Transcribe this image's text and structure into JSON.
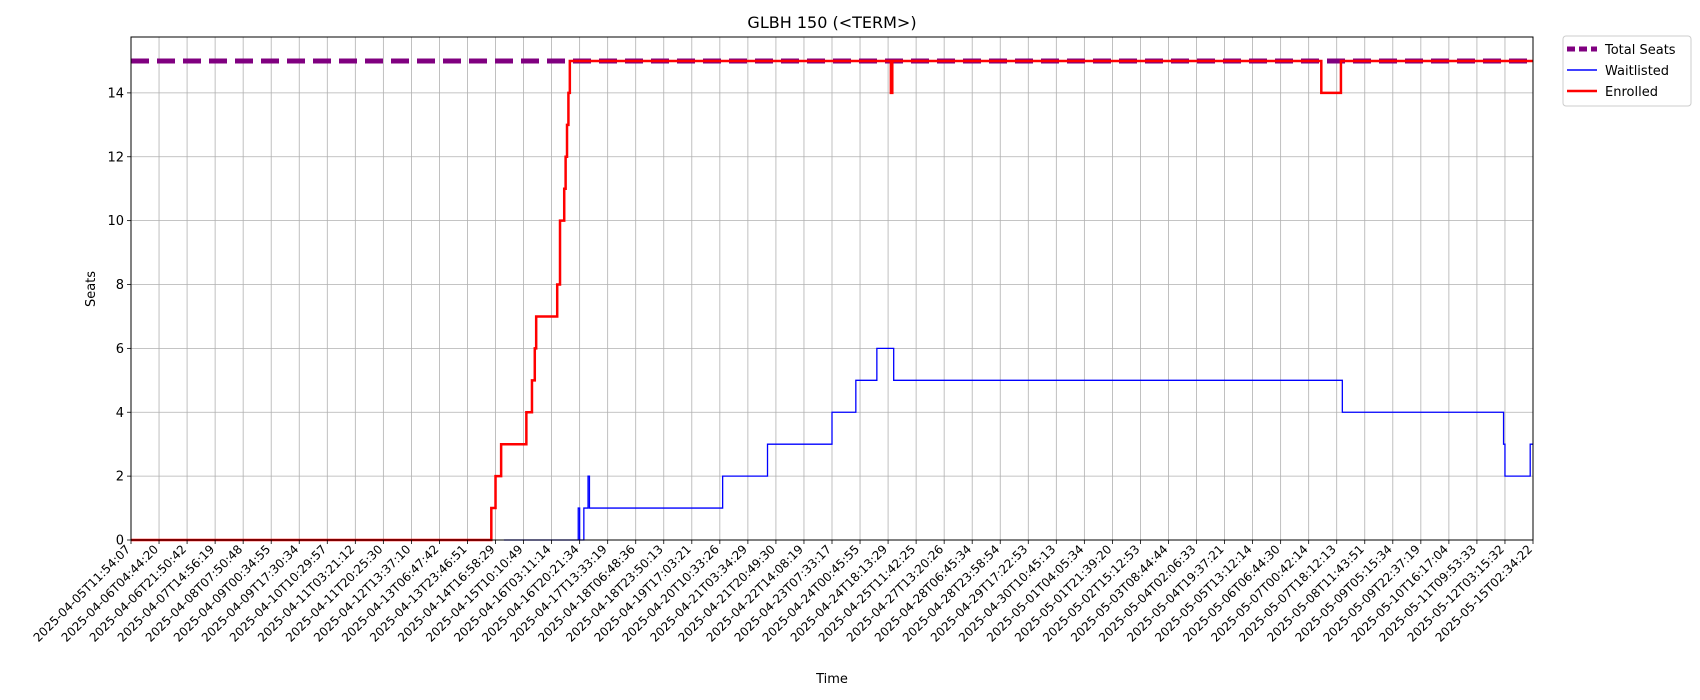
{
  "chart_data": {
    "type": "line",
    "title": "GLBH 150 (<TERM>)",
    "xlabel": "Time",
    "ylabel": "Seats",
    "ylim": [
      0,
      15.75
    ],
    "grid": true,
    "legend_placement": "outside-top-right",
    "x_ticks": [
      "2025-04-05T11:54:07",
      "2025-04-06T04:44:20",
      "2025-04-06T21:50:42",
      "2025-04-07T14:56:19",
      "2025-04-08T07:50:48",
      "2025-04-09T00:34:55",
      "2025-04-09T17:30:34",
      "2025-04-10T10:29:57",
      "2025-04-11T03:21:12",
      "2025-04-11T20:25:30",
      "2025-04-12T13:37:10",
      "2025-04-13T06:47:42",
      "2025-04-13T23:46:51",
      "2025-04-14T16:58:29",
      "2025-04-15T10:10:49",
      "2025-04-16T03:11:14",
      "2025-04-16T20:21:34",
      "2025-04-17T13:33:19",
      "2025-04-18T06:48:36",
      "2025-04-18T23:50:13",
      "2025-04-19T17:03:21",
      "2025-04-20T10:33:26",
      "2025-04-21T03:34:29",
      "2025-04-21T20:49:30",
      "2025-04-22T14:08:19",
      "2025-04-23T07:33:17",
      "2025-04-24T00:45:55",
      "2025-04-24T18:13:29",
      "2025-04-25T11:42:25",
      "2025-04-27T13:20:26",
      "2025-04-28T06:45:34",
      "2025-04-28T23:58:54",
      "2025-04-29T17:22:53",
      "2025-04-30T10:45:13",
      "2025-05-01T04:05:34",
      "2025-05-01T21:39:20",
      "2025-05-02T15:12:53",
      "2025-05-03T08:44:44",
      "2025-05-04T02:06:33",
      "2025-05-04T19:37:21",
      "2025-05-05T13:12:14",
      "2025-05-06T06:44:30",
      "2025-05-07T00:42:14",
      "2025-05-07T18:12:13",
      "2025-05-08T11:43:51",
      "2025-05-09T05:15:34",
      "2025-05-09T22:37:19",
      "2025-05-10T16:17:04",
      "2025-05-11T09:53:33",
      "2025-05-12T03:15:32",
      "2025-05-15T02:34:22"
    ],
    "y_ticks": [
      0,
      2,
      4,
      6,
      8,
      10,
      12,
      14
    ],
    "series": [
      {
        "name": "Total Seats",
        "color": "#800080",
        "style": "dashed",
        "points": [
          [
            0,
            15
          ],
          [
            50,
            15
          ]
        ]
      },
      {
        "name": "Waitlisted",
        "color": "#0000ff",
        "style": "step",
        "points": [
          [
            13.3,
            0
          ],
          [
            15.95,
            0
          ],
          [
            15.95,
            1
          ],
          [
            16.0,
            1
          ],
          [
            16.0,
            0
          ],
          [
            16.15,
            0
          ],
          [
            16.15,
            1
          ],
          [
            16.3,
            1
          ],
          [
            16.3,
            2
          ],
          [
            16.35,
            2
          ],
          [
            16.35,
            1
          ],
          [
            21.1,
            1
          ],
          [
            21.1,
            2
          ],
          [
            22.7,
            2
          ],
          [
            22.7,
            3
          ],
          [
            25.0,
            3
          ],
          [
            25.0,
            4
          ],
          [
            25.85,
            4
          ],
          [
            25.85,
            5
          ],
          [
            26.6,
            5
          ],
          [
            26.6,
            6
          ],
          [
            27.2,
            6
          ],
          [
            27.2,
            5
          ],
          [
            43.2,
            5
          ],
          [
            43.2,
            4
          ],
          [
            48.95,
            4
          ],
          [
            48.95,
            3
          ],
          [
            49.0,
            3
          ],
          [
            49.0,
            2
          ],
          [
            49.9,
            2
          ],
          [
            49.9,
            3
          ],
          [
            50,
            3
          ]
        ]
      },
      {
        "name": "Enrolled",
        "color": "#ff0000",
        "style": "step",
        "points": [
          [
            0,
            0
          ],
          [
            12.85,
            0
          ],
          [
            12.85,
            1
          ],
          [
            13.0,
            1
          ],
          [
            13.0,
            2
          ],
          [
            13.2,
            2
          ],
          [
            13.2,
            3
          ],
          [
            14.1,
            3
          ],
          [
            14.1,
            4
          ],
          [
            14.3,
            4
          ],
          [
            14.3,
            5
          ],
          [
            14.4,
            5
          ],
          [
            14.4,
            6
          ],
          [
            14.45,
            6
          ],
          [
            14.45,
            7
          ],
          [
            15.2,
            7
          ],
          [
            15.2,
            8
          ],
          [
            15.3,
            8
          ],
          [
            15.3,
            10
          ],
          [
            15.45,
            10
          ],
          [
            15.45,
            11
          ],
          [
            15.5,
            11
          ],
          [
            15.5,
            12
          ],
          [
            15.55,
            12
          ],
          [
            15.55,
            13
          ],
          [
            15.6,
            13
          ],
          [
            15.6,
            14
          ],
          [
            15.65,
            14
          ],
          [
            15.65,
            15
          ],
          [
            27.1,
            15
          ],
          [
            27.1,
            14
          ],
          [
            27.15,
            14
          ],
          [
            27.15,
            15
          ],
          [
            42.45,
            15
          ],
          [
            42.45,
            14
          ],
          [
            43.15,
            14
          ],
          [
            43.15,
            15
          ],
          [
            50,
            15
          ]
        ]
      }
    ]
  }
}
